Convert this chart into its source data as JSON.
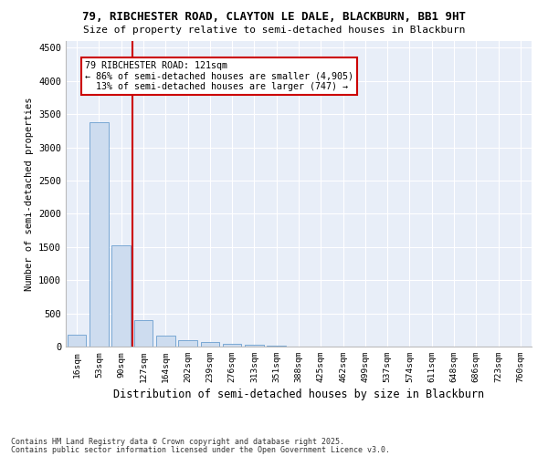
{
  "title1": "79, RIBCHESTER ROAD, CLAYTON LE DALE, BLACKBURN, BB1 9HT",
  "title2": "Size of property relative to semi-detached houses in Blackburn",
  "xlabel": "Distribution of semi-detached houses by size in Blackburn",
  "ylabel": "Number of semi-detached properties",
  "categories": [
    "16sqm",
    "53sqm",
    "90sqm",
    "127sqm",
    "164sqm",
    "202sqm",
    "239sqm",
    "276sqm",
    "313sqm",
    "351sqm",
    "388sqm",
    "425sqm",
    "462sqm",
    "499sqm",
    "537sqm",
    "574sqm",
    "611sqm",
    "648sqm",
    "686sqm",
    "723sqm",
    "760sqm"
  ],
  "values": [
    185,
    3380,
    1520,
    400,
    165,
    95,
    70,
    45,
    30,
    10,
    5,
    0,
    0,
    0,
    0,
    0,
    0,
    0,
    0,
    0,
    0
  ],
  "bar_color": "#cddcef",
  "bar_edge_color": "#6a9ecf",
  "vline_x": 2.5,
  "vline_color": "#cc0000",
  "annotation_title": "79 RIBCHESTER ROAD: 121sqm",
  "annotation_line1": "← 86% of semi-detached houses are smaller (4,905)",
  "annotation_line2": "13% of semi-detached houses are larger (747) →",
  "ylim": [
    0,
    4600
  ],
  "yticks": [
    0,
    500,
    1000,
    1500,
    2000,
    2500,
    3000,
    3500,
    4000,
    4500
  ],
  "bg_color": "#e8eef8",
  "footnote1": "Contains HM Land Registry data © Crown copyright and database right 2025.",
  "footnote2": "Contains public sector information licensed under the Open Government Licence v3.0."
}
